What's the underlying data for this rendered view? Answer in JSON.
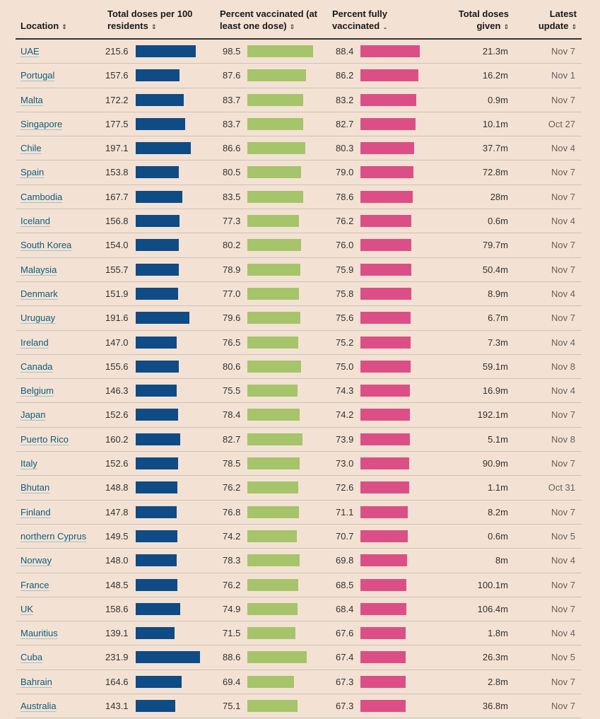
{
  "columns": {
    "location": "Location",
    "doses_line1": "Total doses per 100",
    "doses_line2": "residents",
    "pct_line1": "Percent vaccinated (at",
    "pct_line2": "least one dose)",
    "full_line1": "Percent fully",
    "full_line2": "vaccinated",
    "given_line1": "Total doses",
    "given_line2": "given",
    "latest_line1": "Latest",
    "latest_line2": "update"
  },
  "icons": {
    "sort": "sort-updown-icon",
    "sorted_desc": "chevron-down-icon"
  },
  "colors": {
    "doses_bar": "#0f4b85",
    "pct_bar": "#a6c46a",
    "full_bar": "#dc4f86",
    "background": "#f3e2d4"
  },
  "chart_data": {
    "type": "table",
    "title": "",
    "sorted_by": "Percent fully vaccinated",
    "sort_order": "descending",
    "columns": [
      "Location",
      "Total doses per 100 residents",
      "Percent vaccinated (at least one dose)",
      "Percent fully vaccinated",
      "Total doses given",
      "Latest update"
    ],
    "rows": [
      {
        "location": "UAE",
        "doses_per_100": 215.6,
        "pct_one_dose": 98.5,
        "pct_fully": 88.4,
        "total_doses": "21.3m",
        "latest": "Nov 7"
      },
      {
        "location": "Portugal",
        "doses_per_100": 157.6,
        "pct_one_dose": 87.6,
        "pct_fully": 86.2,
        "total_doses": "16.2m",
        "latest": "Nov 1"
      },
      {
        "location": "Malta",
        "doses_per_100": 172.2,
        "pct_one_dose": 83.7,
        "pct_fully": 83.2,
        "total_doses": "0.9m",
        "latest": "Nov 7"
      },
      {
        "location": "Singapore",
        "doses_per_100": 177.5,
        "pct_one_dose": 83.7,
        "pct_fully": 82.7,
        "total_doses": "10.1m",
        "latest": "Oct 27"
      },
      {
        "location": "Chile",
        "doses_per_100": 197.1,
        "pct_one_dose": 86.6,
        "pct_fully": 80.3,
        "total_doses": "37.7m",
        "latest": "Nov 4"
      },
      {
        "location": "Spain",
        "doses_per_100": 153.8,
        "pct_one_dose": 80.5,
        "pct_fully": 79.0,
        "total_doses": "72.8m",
        "latest": "Nov 7"
      },
      {
        "location": "Cambodia",
        "doses_per_100": 167.7,
        "pct_one_dose": 83.5,
        "pct_fully": 78.6,
        "total_doses": "28m",
        "latest": "Nov 7"
      },
      {
        "location": "Iceland",
        "doses_per_100": 156.8,
        "pct_one_dose": 77.3,
        "pct_fully": 76.2,
        "total_doses": "0.6m",
        "latest": "Nov 4"
      },
      {
        "location": "South Korea",
        "doses_per_100": 154.0,
        "pct_one_dose": 80.2,
        "pct_fully": 76.0,
        "total_doses": "79.7m",
        "latest": "Nov 7"
      },
      {
        "location": "Malaysia",
        "doses_per_100": 155.7,
        "pct_one_dose": 78.9,
        "pct_fully": 75.9,
        "total_doses": "50.4m",
        "latest": "Nov 7"
      },
      {
        "location": "Denmark",
        "doses_per_100": 151.9,
        "pct_one_dose": 77.0,
        "pct_fully": 75.8,
        "total_doses": "8.9m",
        "latest": "Nov 4"
      },
      {
        "location": "Uruguay",
        "doses_per_100": 191.6,
        "pct_one_dose": 79.6,
        "pct_fully": 75.6,
        "total_doses": "6.7m",
        "latest": "Nov 7"
      },
      {
        "location": "Ireland",
        "doses_per_100": 147.0,
        "pct_one_dose": 76.5,
        "pct_fully": 75.2,
        "total_doses": "7.3m",
        "latest": "Nov 4"
      },
      {
        "location": "Canada",
        "doses_per_100": 155.6,
        "pct_one_dose": 80.6,
        "pct_fully": 75.0,
        "total_doses": "59.1m",
        "latest": "Nov 8"
      },
      {
        "location": "Belgium",
        "doses_per_100": 146.3,
        "pct_one_dose": 75.5,
        "pct_fully": 74.3,
        "total_doses": "16.9m",
        "latest": "Nov 4"
      },
      {
        "location": "Japan",
        "doses_per_100": 152.6,
        "pct_one_dose": 78.4,
        "pct_fully": 74.2,
        "total_doses": "192.1m",
        "latest": "Nov 7"
      },
      {
        "location": "Puerto Rico",
        "doses_per_100": 160.2,
        "pct_one_dose": 82.7,
        "pct_fully": 73.9,
        "total_doses": "5.1m",
        "latest": "Nov 8"
      },
      {
        "location": "Italy",
        "doses_per_100": 152.6,
        "pct_one_dose": 78.5,
        "pct_fully": 73.0,
        "total_doses": "90.9m",
        "latest": "Nov 7"
      },
      {
        "location": "Bhutan",
        "doses_per_100": 148.8,
        "pct_one_dose": 76.2,
        "pct_fully": 72.6,
        "total_doses": "1.1m",
        "latest": "Oct 31"
      },
      {
        "location": "Finland",
        "doses_per_100": 147.8,
        "pct_one_dose": 76.8,
        "pct_fully": 71.1,
        "total_doses": "8.2m",
        "latest": "Nov 7"
      },
      {
        "location": "northern Cyprus",
        "doses_per_100": 149.5,
        "pct_one_dose": 74.2,
        "pct_fully": 70.7,
        "total_doses": "0.6m",
        "latest": "Nov 5"
      },
      {
        "location": "Norway",
        "doses_per_100": 148.0,
        "pct_one_dose": 78.3,
        "pct_fully": 69.8,
        "total_doses": "8m",
        "latest": "Nov 4"
      },
      {
        "location": "France",
        "doses_per_100": 148.5,
        "pct_one_dose": 76.2,
        "pct_fully": 68.5,
        "total_doses": "100.1m",
        "latest": "Nov 7"
      },
      {
        "location": "UK",
        "doses_per_100": 158.6,
        "pct_one_dose": 74.9,
        "pct_fully": 68.4,
        "total_doses": "106.4m",
        "latest": "Nov 7"
      },
      {
        "location": "Mauritius",
        "doses_per_100": 139.1,
        "pct_one_dose": 71.5,
        "pct_fully": 67.6,
        "total_doses": "1.8m",
        "latest": "Nov 4"
      },
      {
        "location": "Cuba",
        "doses_per_100": 231.9,
        "pct_one_dose": 88.6,
        "pct_fully": 67.4,
        "total_doses": "26.3m",
        "latest": "Nov 5"
      },
      {
        "location": "Bahrain",
        "doses_per_100": 164.6,
        "pct_one_dose": 69.4,
        "pct_fully": 67.3,
        "total_doses": "2.8m",
        "latest": "Nov 7"
      },
      {
        "location": "Australia",
        "doses_per_100": 143.1,
        "pct_one_dose": 75.1,
        "pct_fully": 67.3,
        "total_doses": "36.8m",
        "latest": "Nov 7"
      }
    ]
  }
}
